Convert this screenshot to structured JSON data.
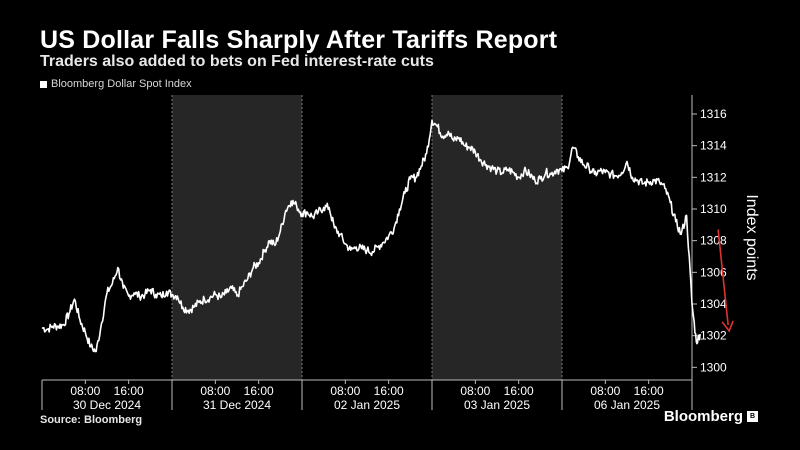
{
  "header": {
    "title": "US Dollar Falls Sharply After Tariffs Report",
    "subtitle": "Traders also added to bets on Fed interest-rate cuts"
  },
  "legend": {
    "label": "Bloomberg Dollar Spot Index",
    "swatch_color": "#ffffff"
  },
  "footer": {
    "source": "Source: Bloomberg",
    "brand": "Bloomberg",
    "brand_badge": "B"
  },
  "colors": {
    "background": "#000000",
    "shade": "#262626",
    "line": "#ffffff",
    "arrow": "#e0322f"
  },
  "chart_data": {
    "type": "line",
    "title": "US Dollar Falls Sharply After Tariffs Report",
    "subtitle": "Traders also added to bets on Fed interest-rate cuts",
    "ylabel": "Index points",
    "ylim": [
      1299.2,
      1317.2
    ],
    "yticks": [
      1300,
      1302,
      1304,
      1306,
      1308,
      1310,
      1312,
      1314,
      1316
    ],
    "days": [
      "30 Dec 2024",
      "31 Dec 2024",
      "02 Jan 2025",
      "03 Jan 2025",
      "06 Jan 2025"
    ],
    "hour_ticks": [
      "08:00",
      "16:00"
    ],
    "day_hours": 24,
    "shaded_days": [
      1,
      3
    ],
    "grid": false,
    "legend_position": "top-left",
    "series": [
      {
        "name": "Bloomberg Dollar Spot Index",
        "points": [
          [
            0,
            1302.5
          ],
          [
            1,
            1302.4
          ],
          [
            2,
            1302.6
          ],
          [
            3,
            1302.6
          ],
          [
            4,
            1302.7
          ],
          [
            5,
            1303.4
          ],
          [
            6,
            1304.3
          ],
          [
            7,
            1303.0
          ],
          [
            8,
            1302.2
          ],
          [
            9,
            1301.3
          ],
          [
            10,
            1301.0
          ],
          [
            11,
            1302.8
          ],
          [
            12,
            1304.7
          ],
          [
            13,
            1305.3
          ],
          [
            14,
            1306.3
          ],
          [
            15,
            1305.0
          ],
          [
            16,
            1304.5
          ],
          [
            17,
            1304.7
          ],
          [
            18,
            1304.5
          ],
          [
            19,
            1304.6
          ],
          [
            20,
            1304.9
          ],
          [
            21,
            1304.6
          ],
          [
            22,
            1304.5
          ],
          [
            23,
            1304.8
          ],
          [
            24,
            1304.6
          ],
          [
            25,
            1304.5
          ],
          [
            26,
            1303.8
          ],
          [
            27,
            1303.6
          ],
          [
            28,
            1303.8
          ],
          [
            29,
            1304.1
          ],
          [
            30,
            1304.3
          ],
          [
            31,
            1304.4
          ],
          [
            32,
            1304.6
          ],
          [
            33,
            1304.4
          ],
          [
            34,
            1304.7
          ],
          [
            35,
            1305.0
          ],
          [
            36,
            1304.5
          ],
          [
            37,
            1305.1
          ],
          [
            38,
            1305.6
          ],
          [
            39,
            1306.3
          ],
          [
            40,
            1306.6
          ],
          [
            41,
            1307.3
          ],
          [
            42,
            1308.0
          ],
          [
            43,
            1307.7
          ],
          [
            44,
            1308.6
          ],
          [
            45,
            1309.9
          ],
          [
            46,
            1310.5
          ],
          [
            47,
            1310.2
          ],
          [
            48,
            1309.7
          ],
          [
            49,
            1309.8
          ],
          [
            50,
            1309.5
          ],
          [
            51,
            1309.8
          ],
          [
            52,
            1310.1
          ],
          [
            53,
            1310.1
          ],
          [
            54,
            1308.8
          ],
          [
            55,
            1308.4
          ],
          [
            56,
            1307.8
          ],
          [
            57,
            1307.4
          ],
          [
            58,
            1307.6
          ],
          [
            59,
            1307.5
          ],
          [
            60,
            1307.4
          ],
          [
            61,
            1307.3
          ],
          [
            62,
            1307.6
          ],
          [
            63,
            1307.9
          ],
          [
            64,
            1308.3
          ],
          [
            65,
            1308.8
          ],
          [
            66,
            1310.0
          ],
          [
            67,
            1311.0
          ],
          [
            68,
            1311.9
          ],
          [
            69,
            1312.0
          ],
          [
            70,
            1312.7
          ],
          [
            71,
            1313.5
          ],
          [
            72,
            1315.6
          ],
          [
            73,
            1315.2
          ],
          [
            74,
            1314.6
          ],
          [
            75,
            1314.9
          ],
          [
            76,
            1314.3
          ],
          [
            77,
            1314.5
          ],
          [
            78,
            1314.0
          ],
          [
            79,
            1313.9
          ],
          [
            80,
            1313.6
          ],
          [
            81,
            1313.1
          ],
          [
            82,
            1312.8
          ],
          [
            83,
            1312.6
          ],
          [
            84,
            1312.4
          ],
          [
            85,
            1312.3
          ],
          [
            86,
            1312.5
          ],
          [
            87,
            1312.3
          ],
          [
            88,
            1312.0
          ],
          [
            89,
            1312.4
          ],
          [
            90,
            1312.2
          ],
          [
            91,
            1311.8
          ],
          [
            92,
            1311.9
          ],
          [
            93,
            1312.3
          ],
          [
            94,
            1312.2
          ],
          [
            95,
            1312.5
          ],
          [
            96,
            1312.4
          ],
          [
            97,
            1312.6
          ],
          [
            98,
            1313.9
          ],
          [
            99,
            1313.3
          ],
          [
            100,
            1312.8
          ],
          [
            101,
            1312.6
          ],
          [
            102,
            1312.2
          ],
          [
            103,
            1312.4
          ],
          [
            104,
            1312.3
          ],
          [
            105,
            1312.2
          ],
          [
            106,
            1312.1
          ],
          [
            107,
            1312.3
          ],
          [
            108,
            1313.0
          ],
          [
            109,
            1312.0
          ],
          [
            110,
            1311.8
          ],
          [
            111,
            1311.6
          ],
          [
            112,
            1311.7
          ],
          [
            113,
            1311.8
          ],
          [
            114,
            1311.7
          ],
          [
            115,
            1311.3
          ],
          [
            116,
            1310.4
          ],
          [
            117,
            1309.2
          ],
          [
            118,
            1308.4
          ],
          [
            119,
            1309.6
          ],
          [
            120,
            1304.0
          ],
          [
            120.8,
            1301.6
          ],
          [
            121.5,
            1302.1
          ]
        ]
      }
    ],
    "annotations": [
      {
        "type": "arrow",
        "direction": "down",
        "color": "#e0322f"
      }
    ]
  }
}
